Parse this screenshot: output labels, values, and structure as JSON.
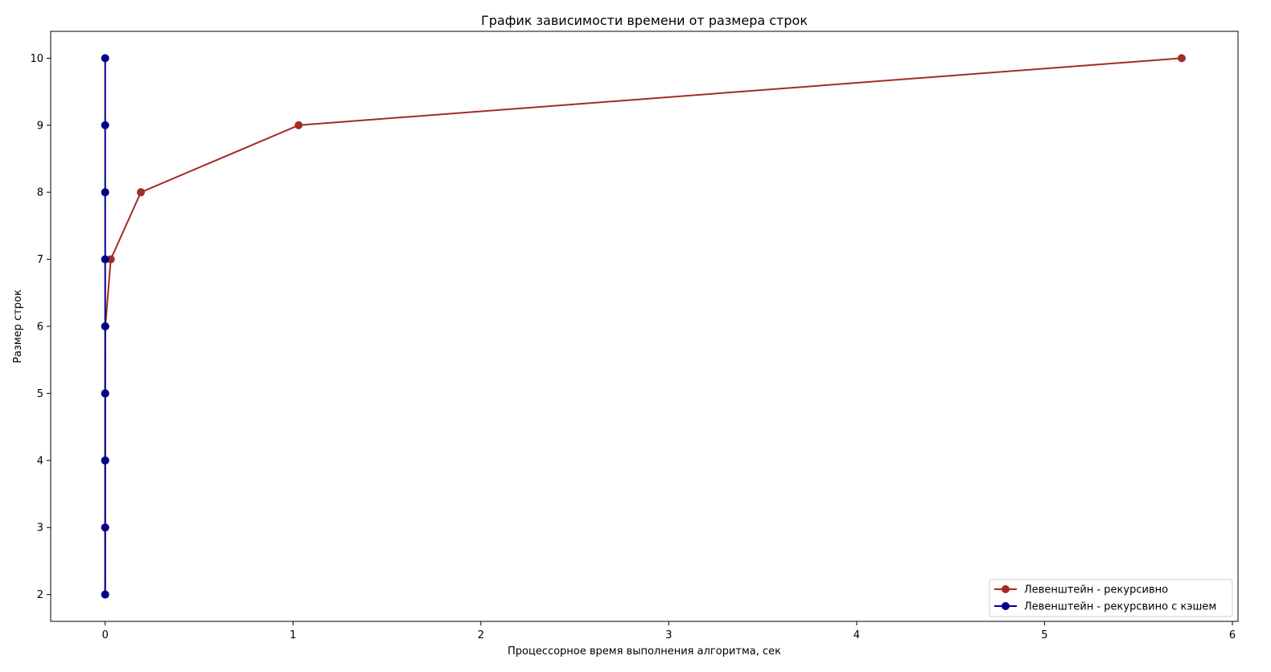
{
  "chart_data": {
    "type": "line",
    "title": "График зависимости времени от размера строк",
    "xlabel": "Процессорное время выполнения алгоритма, сек",
    "ylabel": "Размер строк",
    "xlim": [
      -0.29,
      6.03
    ],
    "ylim": [
      1.6,
      10.4
    ],
    "xticks": [
      0,
      1,
      2,
      3,
      4,
      5,
      6
    ],
    "yticks": [
      2,
      3,
      4,
      5,
      6,
      7,
      8,
      9,
      10
    ],
    "grid": false,
    "legend_position": "lower-right",
    "series": [
      {
        "name": "Левенштейн - рекурсивно",
        "color": "#a52a2a",
        "marker": "circle",
        "points": [
          {
            "x": 0.0,
            "y": 2
          },
          {
            "x": 0.0,
            "y": 3
          },
          {
            "x": 0.0,
            "y": 4
          },
          {
            "x": 0.0,
            "y": 5
          },
          {
            "x": 0.001,
            "y": 6
          },
          {
            "x": 0.03,
            "y": 7
          },
          {
            "x": 0.19,
            "y": 8
          },
          {
            "x": 1.03,
            "y": 9
          },
          {
            "x": 5.73,
            "y": 10
          }
        ]
      },
      {
        "name": "Левенштейн - рекурсвино с кэшем",
        "color": "#00008b",
        "marker": "circle",
        "points": [
          {
            "x": 0.0,
            "y": 2
          },
          {
            "x": 0.0,
            "y": 3
          },
          {
            "x": 0.0,
            "y": 4
          },
          {
            "x": 0.0,
            "y": 5
          },
          {
            "x": 0.0,
            "y": 6
          },
          {
            "x": 0.0,
            "y": 7
          },
          {
            "x": 0.0,
            "y": 8
          },
          {
            "x": 0.0,
            "y": 9
          },
          {
            "x": 0.0,
            "y": 10
          }
        ]
      }
    ]
  }
}
